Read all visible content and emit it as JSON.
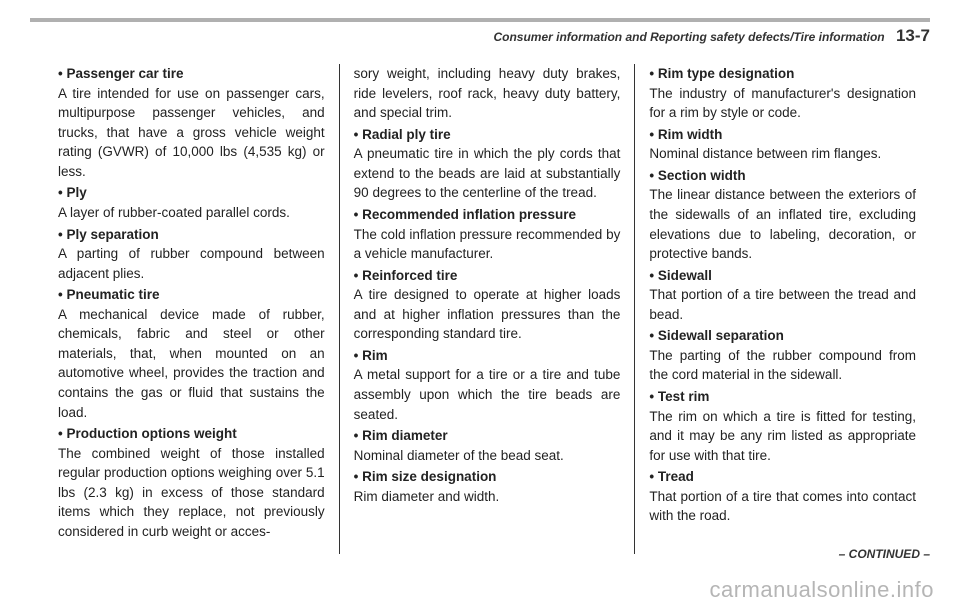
{
  "header": {
    "section_title": "Consumer information and Reporting safety defects/Tire information",
    "page_number": "13-7"
  },
  "columns": [
    {
      "items": [
        {
          "term": "Passenger car tire",
          "definition": "A tire intended for use on passenger cars, multipurpose passenger vehicles, and trucks, that have a gross vehicle weight rating (GVWR) of 10,000 lbs (4,535 kg) or less."
        },
        {
          "term": "Ply",
          "definition": "A layer of rubber-coated parallel cords."
        },
        {
          "term": "Ply separation",
          "definition": "A parting of rubber compound between adjacent plies."
        },
        {
          "term": "Pneumatic tire",
          "definition": "A mechanical device made of rubber, chemicals, fabric and steel or other materials, that, when mounted on an automotive wheel, provides the traction and contains the gas or fluid that sustains the load."
        },
        {
          "term": "Production options weight",
          "definition": "The combined weight of those installed regular production options weighing over 5.1 lbs (2.3 kg) in excess of those standard items which they replace, not previously considered in curb weight or acces-"
        }
      ]
    },
    {
      "lead_in": "sory weight, including heavy duty brakes, ride levelers, roof rack, heavy duty battery, and special trim.",
      "items": [
        {
          "term": "Radial ply tire",
          "definition": "A pneumatic tire in which the ply cords that extend to the beads are laid at substantially 90 degrees to the centerline of the tread."
        },
        {
          "term": "Recommended inflation pressure",
          "definition": "The cold inflation pressure recommended by a vehicle manufacturer."
        },
        {
          "term": "Reinforced tire",
          "definition": "A tire designed to operate at higher loads and at higher inflation pressures than the corresponding standard tire."
        },
        {
          "term": "Rim",
          "definition": "A metal support for a tire or a tire and tube assembly upon which the tire beads are seated."
        },
        {
          "term": "Rim diameter",
          "definition": "Nominal diameter of the bead seat."
        },
        {
          "term": "Rim size designation",
          "definition": "Rim diameter and width."
        }
      ]
    },
    {
      "items": [
        {
          "term": "Rim type designation",
          "definition": "The industry of manufacturer's designation for a rim by style or code."
        },
        {
          "term": "Rim width",
          "definition": "Nominal distance between rim flanges."
        },
        {
          "term": "Section width",
          "definition": "The linear distance between the exteriors of the sidewalls of an inflated tire, excluding elevations due to labeling, decoration, or protective bands."
        },
        {
          "term": "Sidewall",
          "definition": "That portion of a tire between the tread and bead."
        },
        {
          "term": "Sidewall separation",
          "definition": "The parting of the rubber compound from the cord material in the sidewall."
        },
        {
          "term": "Test rim",
          "definition": "The rim on which a tire is fitted for testing, and it may be any rim listed as appropriate for use with that tire."
        },
        {
          "term": "Tread",
          "definition": "That portion of a tire that comes into contact with the road."
        }
      ]
    }
  ],
  "footer": {
    "continued": "– CONTINUED –",
    "watermark": "carmanualsonline.info"
  }
}
